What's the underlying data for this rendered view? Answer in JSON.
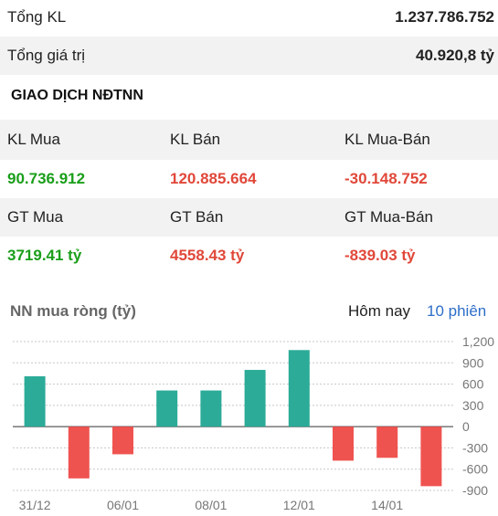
{
  "summary": {
    "total_volume_label": "Tổng KL",
    "total_volume_value": "1.237.786.752",
    "total_value_label": "Tổng giá trị",
    "total_value_value": "40.920,8 tỷ"
  },
  "foreign": {
    "section_title": "GIAO DỊCH NĐTNN",
    "headers_volume": [
      "KL Mua",
      "KL Bán",
      "KL Mua-Bán"
    ],
    "values_volume": [
      "90.736.912",
      "120.885.664",
      "-30.148.752"
    ],
    "headers_value": [
      "GT Mua",
      "GT Bán",
      "GT Mua-Bán"
    ],
    "values_value": [
      "3719.41 tỷ",
      "4558.43 tỷ",
      "-839.03 tỷ"
    ]
  },
  "chart_header": {
    "title": "NN mua ròng (tỷ)",
    "tab_today": "Hôm nay",
    "tab_10": "10 phiên"
  },
  "colors": {
    "positive": "#2bab98",
    "negative": "#ef5350",
    "green_text": "#1a9e1a",
    "red_text": "#e0483a",
    "link": "#2d6ec8"
  },
  "chart_data": {
    "type": "bar",
    "title": "NN mua ròng (tỷ)",
    "ylim": [
      -900,
      1200
    ],
    "yticks": [
      1200,
      900,
      600,
      300,
      0,
      -300,
      -600,
      -900
    ],
    "ytick_labels": [
      "1,200",
      "900",
      "600",
      "300",
      "0",
      "-300",
      "-600",
      "-900"
    ],
    "xtick_labels": [
      "31/12",
      "06/01",
      "08/01",
      "12/01",
      "14/01"
    ],
    "xtick_bar_index": [
      0,
      2,
      4,
      6,
      8
    ],
    "values": [
      710,
      -730,
      -390,
      510,
      510,
      800,
      1080,
      -480,
      -440,
      -840
    ],
    "grid": true
  }
}
